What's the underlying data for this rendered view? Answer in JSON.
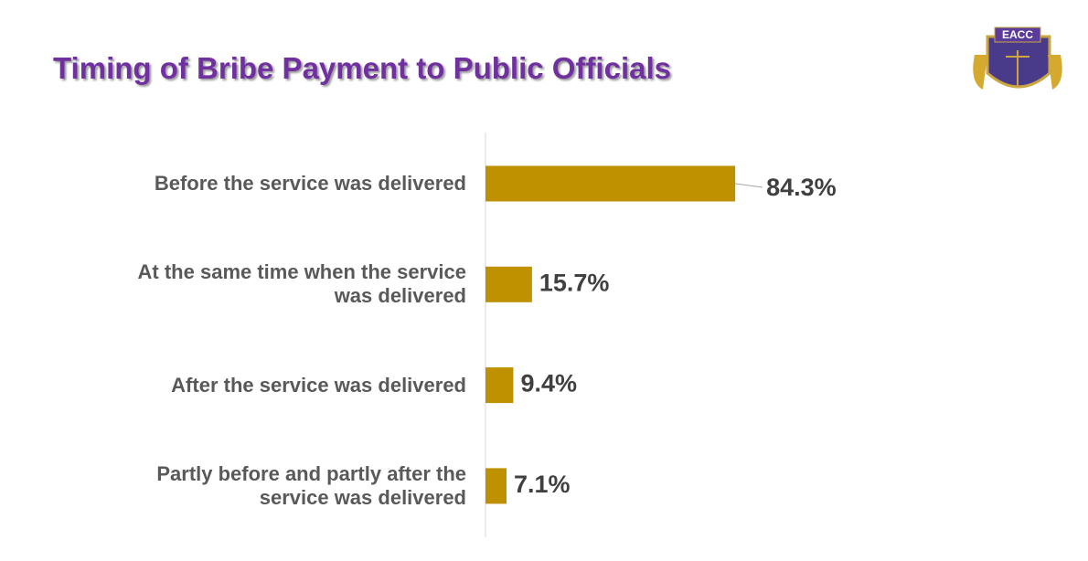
{
  "logo_text": "EACC",
  "chart_data": {
    "type": "bar",
    "orientation": "horizontal",
    "title": "Timing of Bribe Payment to Public Officials",
    "categories": [
      "Before the service was delivered",
      "At the same time when the service was delivered",
      "After the service was delivered",
      "Partly before and partly after the service was delivered"
    ],
    "values": [
      84.3,
      15.7,
      9.4,
      7.1
    ],
    "value_labels": [
      "84.3%",
      "15.7%",
      "9.4%",
      "7.1%"
    ],
    "color": "#bf9000"
  }
}
